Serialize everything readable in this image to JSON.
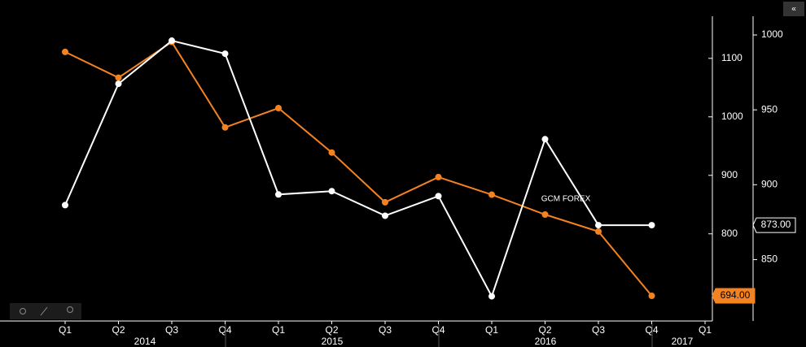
{
  "chart_data": {
    "type": "line",
    "categories": [
      "Q1",
      "Q2",
      "Q3",
      "Q4",
      "Q1",
      "Q2",
      "Q3",
      "Q4",
      "Q1",
      "Q2",
      "Q3",
      "Q4",
      "Q1"
    ],
    "years": [
      "2014",
      "2015",
      "2016",
      "2017"
    ],
    "annotation": "GCM FOREX",
    "collapse_button": "«",
    "ylim": [
      651,
      1172
    ],
    "yticks": [
      800,
      900,
      1000,
      1100
    ],
    "y2lim": [
      809,
      1012.5
    ],
    "y2ticks": [
      850,
      900,
      950,
      1000
    ],
    "series": [
      {
        "color": "#f58220",
        "values": [
          1111,
          1067,
          1128,
          982,
          1015,
          939,
          854,
          897,
          867,
          833,
          804,
          694,
          null
        ],
        "value_labels": [
          null,
          null,
          null,
          null,
          null,
          null,
          null,
          null,
          null,
          null,
          null,
          "694.00",
          null
        ]
      },
      {
        "color": "#ffffff",
        "axis": "y2",
        "values": [
          886.4,
          967.4,
          996.2,
          987.5,
          893.5,
          895.7,
          879.3,
          892.4,
          825.5,
          930.4,
          873,
          873,
          null
        ],
        "value_labels": [
          null,
          null,
          null,
          null,
          null,
          null,
          null,
          null,
          null,
          null,
          null,
          "873.00",
          null
        ]
      }
    ]
  }
}
